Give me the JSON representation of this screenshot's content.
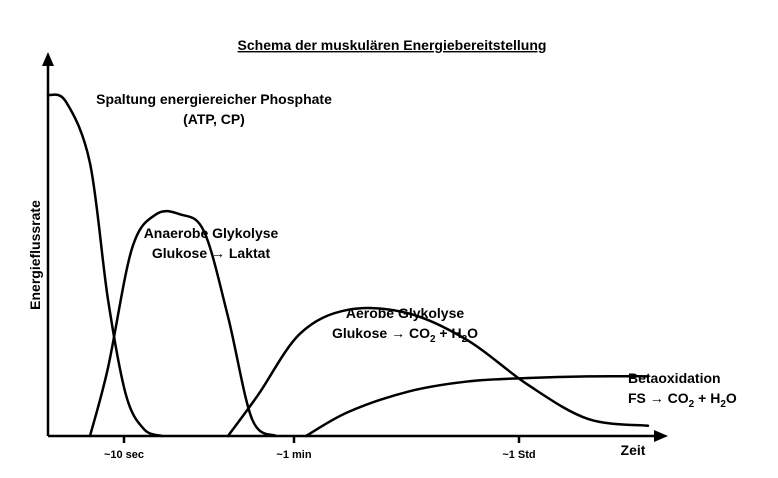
{
  "chart_data": {
    "type": "line",
    "title": "Schema der muskulären Energiebereitstellung",
    "xlabel": "Zeit",
    "ylabel": "Energieflussrate",
    "x_ticks": [
      "~10 sec",
      "~1 min",
      "~1 Std"
    ],
    "series": [
      {
        "key": "phosphate",
        "label_lines": [
          "Spaltung energiereicher Phosphate",
          "(ATP, CP)"
        ],
        "x": [
          0,
          0.03,
          0.07,
          0.1,
          0.13,
          0.16,
          0.19
        ],
        "y": [
          1.0,
          0.98,
          0.8,
          0.4,
          0.12,
          0.02,
          0.0
        ]
      },
      {
        "key": "anaerob",
        "label_lines": [
          "Anaerobe Glykolyse",
          "Glukose → Laktat"
        ],
        "x": [
          0.07,
          0.1,
          0.14,
          0.18,
          0.22,
          0.26,
          0.3,
          0.34,
          0.38
        ],
        "y": [
          0.0,
          0.2,
          0.55,
          0.65,
          0.65,
          0.6,
          0.35,
          0.05,
          0.0
        ]
      },
      {
        "key": "aerob",
        "label_lines": [
          "Aerobe Glykolyse",
          "Glukose → CO₂ + H₂O"
        ],
        "x": [
          0.3,
          0.35,
          0.42,
          0.5,
          0.6,
          0.7,
          0.8,
          0.9,
          1.0
        ],
        "y": [
          0.0,
          0.12,
          0.3,
          0.37,
          0.36,
          0.28,
          0.15,
          0.05,
          0.03
        ]
      },
      {
        "key": "beta",
        "label_lines": [
          "Betaoxidation",
          "FS → CO₂ + H₂O"
        ],
        "x": [
          0.43,
          0.5,
          0.6,
          0.7,
          0.8,
          0.9,
          1.0
        ],
        "y": [
          0.0,
          0.07,
          0.13,
          0.16,
          0.17,
          0.175,
          0.175
        ]
      }
    ],
    "grid": false,
    "legend": "none"
  }
}
